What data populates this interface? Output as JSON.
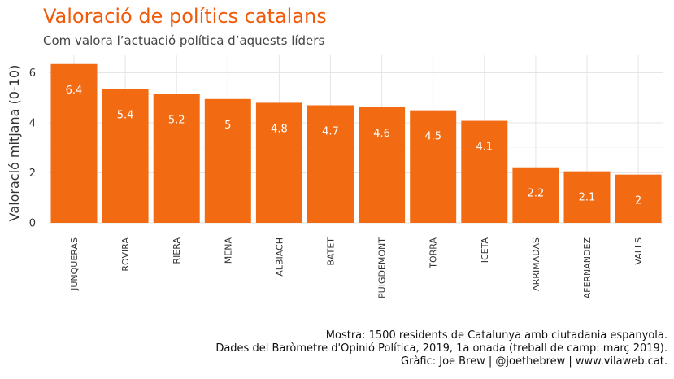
{
  "title": "Valoració de polítics catalans",
  "subtitle": "Com valora l’actuació política d’aquests líders",
  "caption": [
    "Mostra: 1500 residents de Catalunya amb ciutadania espanyola.",
    "Dades del Baròmetre d'Opinió Política, 2019, 1a onada (treball de camp: març 2019).",
    "Gràfic: Joe Brew | @joethebrew | www.vilaweb.cat."
  ],
  "colors": {
    "bar": "#f26a12",
    "title": "#f05a0a",
    "label": "#ffffff",
    "grid": "#e5e5e5"
  },
  "chart_data": {
    "type": "bar",
    "categories": [
      "JUNQUERAS",
      "ROVIRA",
      "RIERA",
      "MENA",
      "ALBIACH",
      "BATET",
      "PUIGDEMONT",
      "TORRA",
      "ICETA",
      "ARRIMADAS",
      "AFERNANDEZ",
      "VALLS"
    ],
    "values": [
      6.35,
      5.35,
      5.15,
      4.95,
      4.8,
      4.7,
      4.62,
      4.5,
      4.08,
      2.22,
      2.06,
      1.93
    ],
    "data_labels": [
      "6.4",
      "5.4",
      "5.2",
      "5",
      "4.8",
      "4.7",
      "4.6",
      "4.5",
      "4.1",
      "2.2",
      "2.1",
      "2"
    ],
    "ylabel": "Valoració mitjana (0-10)",
    "xlabel": "",
    "ylim": [
      0,
      6.7
    ],
    "yticks": [
      0,
      2,
      4,
      6
    ],
    "grid": true,
    "legend": "none"
  }
}
